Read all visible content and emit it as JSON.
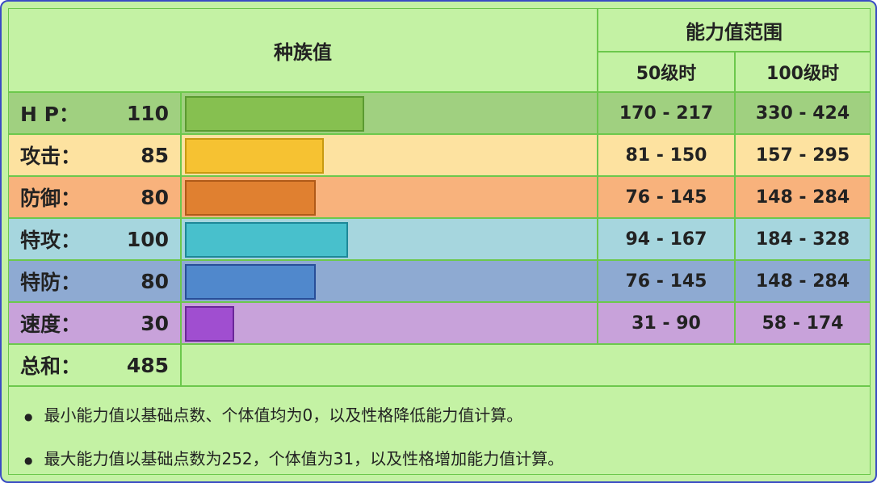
{
  "header": {
    "base_stats": "种族值",
    "stat_range": "能力值范围",
    "level50": "50级时",
    "level100": "100级时"
  },
  "rows": [
    {
      "label": "H P：",
      "value": 110,
      "range50": "170 - 217",
      "range100": "330 - 424",
      "row_color": "#a0d080",
      "bar_color": "#86c050",
      "bar_border": "#5a9a30"
    },
    {
      "label": "攻击：",
      "value": 85,
      "range50": "81 - 150",
      "range100": "157 - 295",
      "row_color": "#fde2a0",
      "bar_color": "#f6c232",
      "bar_border": "#c89a10"
    },
    {
      "label": "防御：",
      "value": 80,
      "range50": "76 - 145",
      "range100": "148 - 284",
      "row_color": "#f8b27c",
      "bar_color": "#e08030",
      "bar_border": "#b05a18"
    },
    {
      "label": "特攻：",
      "value": 100,
      "range50": "94 - 167",
      "range100": "184 - 328",
      "row_color": "#a6d6de",
      "bar_color": "#48c0cc",
      "bar_border": "#1e8898"
    },
    {
      "label": "特防：",
      "value": 80,
      "range50": "76 - 145",
      "range100": "148 - 284",
      "row_color": "#8eaad2",
      "bar_color": "#5088cc",
      "bar_border": "#284e98"
    },
    {
      "label": "速度：",
      "value": 30,
      "range50": "31 - 90",
      "range100": "58 - 174",
      "row_color": "#c8a2da",
      "bar_color": "#a04ed0",
      "bar_border": "#6a2898"
    }
  ],
  "total": {
    "label": "总和：",
    "value": 485
  },
  "notes": [
    "最小能力值以基础点数、个体值均为0，以及性格降低能力值计算。",
    "最大能力值以基础点数为252，个体值为31，以及性格增加能力值计算。"
  ]
}
